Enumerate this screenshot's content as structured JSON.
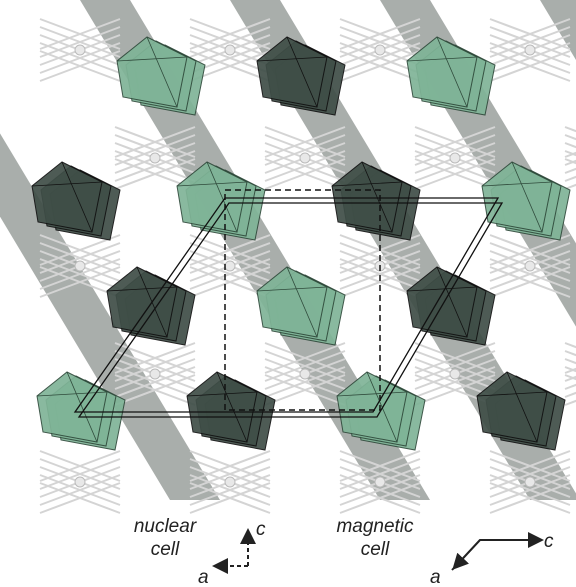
{
  "labels": {
    "nuclear_cell": [
      "nuclear",
      "cell"
    ],
    "magnetic_cell": [
      "magnetic",
      "cell"
    ]
  },
  "axes": {
    "nuclear": {
      "c": "c",
      "a": "a"
    },
    "magnetic": {
      "c": "c",
      "a": "a"
    }
  }
}
